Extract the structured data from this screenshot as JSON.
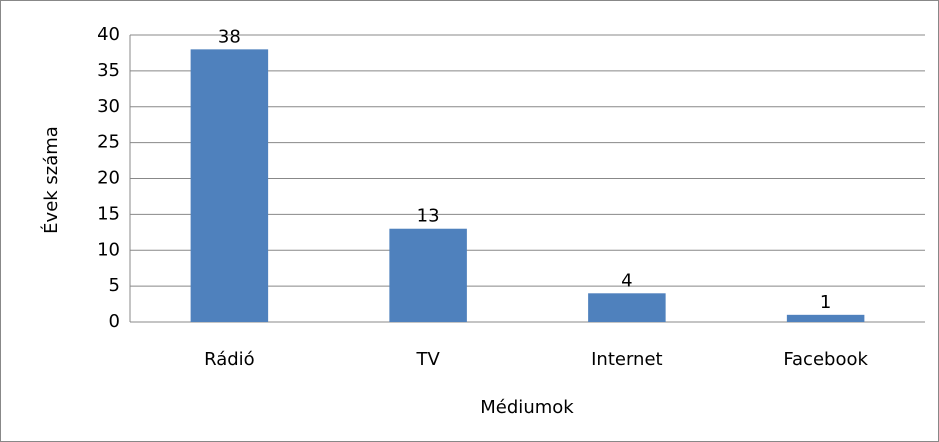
{
  "chart_data": {
    "type": "bar",
    "x_label": "Médiumok",
    "y_label": "Évek száma",
    "categories": [
      "Rádió",
      "TV",
      "Internet",
      "Facebook"
    ],
    "values": [
      38,
      13,
      4,
      1
    ],
    "color": "#4f81bd",
    "ylim": [
      0,
      40
    ],
    "yticks": [
      0,
      5,
      10,
      15,
      20,
      25,
      30,
      35,
      40
    ],
    "grid": true,
    "data_labels": true
  }
}
